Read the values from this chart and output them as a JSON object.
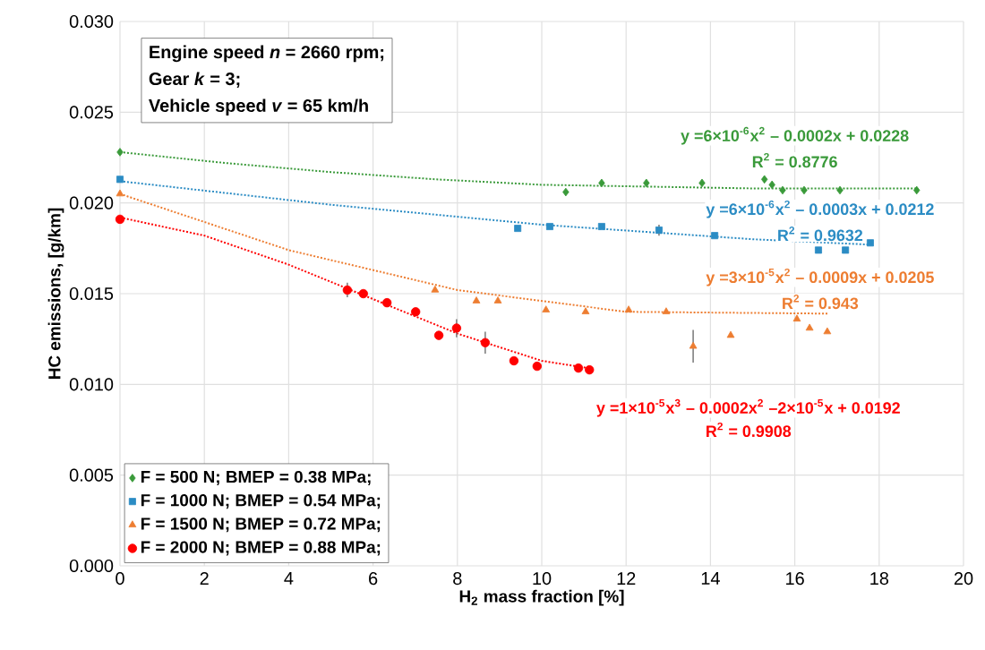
{
  "chart_data": {
    "type": "scatter",
    "xlabel": "H$_{2}$ mass fraction [%]",
    "ylabel": "HC emissions, [g/km]",
    "xlim": [
      0,
      20
    ],
    "xticks": [
      0,
      2,
      4,
      6,
      8,
      10,
      12,
      14,
      16,
      18,
      20
    ],
    "ylim": [
      0,
      0.03
    ],
    "yticks": [
      {
        "value": 0,
        "label": "0.000"
      },
      {
        "value": 0.005,
        "label": "0.005"
      },
      {
        "value": 0.01,
        "label": "0.010"
      },
      {
        "value": 0.015,
        "label": "0.015"
      },
      {
        "value": 0.02,
        "label": "0.020"
      },
      {
        "value": 0.025,
        "label": "0.025"
      },
      {
        "value": 0.03,
        "label": "0.030"
      }
    ],
    "grid": true,
    "legend": "bottom left",
    "series": [
      {
        "name": "F = 500 N; BMEP = 0.38 MPa;",
        "color": "#3a9a3a",
        "marker": "diamond",
        "x": [
          0,
          10.57,
          11.42,
          12.48,
          13.8,
          15.28,
          15.46,
          15.71,
          16.22,
          17.07,
          18.89
        ],
        "values": [
          0.0228,
          0.0206,
          0.0211,
          0.0211,
          0.0211,
          0.0213,
          0.021,
          0.0207,
          0.0207,
          0.0207,
          0.0207
        ]
      },
      {
        "name": "F = 1000 N; BMEP = 0.54 MPa;",
        "color": "#2b8cc4",
        "marker": "square",
        "x": [
          0,
          9.43,
          10.19,
          11.42,
          12.78,
          14.1,
          16.56,
          17.2,
          17.79
        ],
        "values": [
          0.0213,
          0.0186,
          0.0187,
          0.0187,
          0.0185,
          0.0182,
          0.0174,
          0.0174,
          0.0178
        ],
        "errors": [
          null,
          null,
          null,
          null,
          0.0003,
          null,
          null,
          null,
          null
        ]
      },
      {
        "name": "F = 1500 N; BMEP = 0.72 MPa;",
        "color": "#ed7d31",
        "marker": "triangle",
        "x": [
          0,
          7.47,
          8.45,
          8.96,
          10.1,
          11.04,
          12.06,
          12.95,
          13.59,
          14.48,
          16.05,
          16.35,
          16.77
        ],
        "values": [
          0.0205,
          0.0152,
          0.0146,
          0.0146,
          0.0141,
          0.014,
          0.0141,
          0.014,
          0.0121,
          0.0127,
          0.0136,
          0.0131,
          0.0129
        ],
        "errors": [
          null,
          null,
          null,
          null,
          null,
          null,
          null,
          null,
          0.0009,
          null,
          null,
          null,
          null
        ]
      },
      {
        "name": "F = 2000 N; BMEP = 0.88 MPa;",
        "color": "#ff0000",
        "marker": "circle",
        "x": [
          0,
          5.39,
          5.77,
          6.33,
          7.01,
          7.56,
          7.98,
          8.66,
          9.34,
          9.89,
          10.87,
          11.13
        ],
        "values": [
          0.0191,
          0.0152,
          0.015,
          0.0145,
          0.014,
          0.0127,
          0.0131,
          0.0123,
          0.0113,
          0.011,
          0.0109,
          0.0108
        ],
        "errors": [
          null,
          0.0004,
          null,
          null,
          null,
          null,
          0.0005,
          0.0006,
          null,
          null,
          null,
          null
        ]
      },
      {
        "type": "line",
        "color": "#3a9a3a",
        "line_style": "dotted",
        "marker": "none",
        "x": [
          0,
          2.5,
          5,
          7.5,
          10,
          12.5,
          15,
          17,
          18.9
        ],
        "values": [
          0.0228,
          0.0222,
          0.0217,
          0.0213,
          0.021,
          0.0209,
          0.0208,
          0.0208,
          0.0208
        ]
      },
      {
        "type": "line",
        "color": "#2b8cc4",
        "line_style": "dotted",
        "marker": "none",
        "x": [
          0,
          5,
          10,
          15,
          17.8
        ],
        "values": [
          0.0212,
          0.0199,
          0.0188,
          0.018,
          0.0177
        ]
      },
      {
        "type": "line",
        "color": "#ed7d31",
        "line_style": "dotted",
        "marker": "none",
        "x": [
          0,
          4,
          8,
          12,
          16.8
        ],
        "values": [
          0.0205,
          0.0174,
          0.0152,
          0.014,
          0.0139
        ]
      },
      {
        "type": "line",
        "color": "#ff0000",
        "line_style": "dotted",
        "marker": "none",
        "x": [
          0,
          2,
          4,
          6,
          8,
          10,
          11.1
        ],
        "values": [
          0.0192,
          0.0182,
          0.0166,
          0.0147,
          0.0128,
          0.0113,
          0.0109
        ]
      }
    ],
    "annotations": [
      "Engine speed *n* = 2660 rpm;",
      "Gear *k* = 3;",
      "Vehicle speed *v* = 65 km/h",
      "y =6×10$^{-6}$x$^{2}$ – 0.0002x + 0.0228",
      "R$^{2}$ = 0.8776",
      "y =6×10$^{-6}$x$^{2}$ – 0.0003x + 0.0212",
      "R$^{2}$ = 0.9632",
      "y =3×10$^{-5}$x$^{2}$ – 0.0009x + 0.0205",
      "R$^{2}$ = 0.943",
      "y =1×10$^{-5}$x$^{3}$ – 0.0002x$^{2}$ –2×10$^{-5}$x + 0.0192",
      "R$^{2}$ = 0.9908"
    ]
  }
}
